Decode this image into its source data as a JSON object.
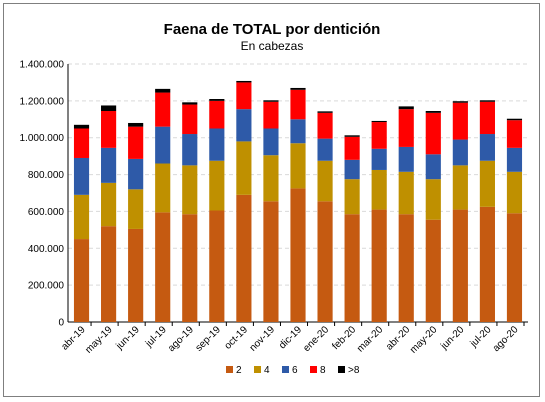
{
  "chart_data": {
    "type": "bar",
    "stacked": true,
    "title": "Faena de TOTAL por dentición",
    "subtitle": "En cabezas",
    "xlabel": "",
    "ylabel": "",
    "ylim": [
      0,
      1400000
    ],
    "yticks": [
      0,
      200000,
      400000,
      600000,
      800000,
      1000000,
      1200000,
      1400000
    ],
    "ytick_labels": [
      "0",
      "200.000",
      "400.000",
      "600.000",
      "800.000",
      "1.000.000",
      "1.200.000",
      "1.400.000"
    ],
    "grid": true,
    "legend_position": "bottom",
    "categories": [
      "abr-19",
      "may-19",
      "jun-19",
      "jul-19",
      "ago-19",
      "sep-19",
      "oct-19",
      "nov-19",
      "dic-19",
      "ene-20",
      "feb-20",
      "mar-20",
      "abr-20",
      "may-20",
      "jun-20",
      "jul-20",
      "ago-20"
    ],
    "series": [
      {
        "name": "2",
        "color": "#c55a11",
        "values": [
          450000,
          520000,
          505000,
          595000,
          585000,
          605000,
          690000,
          655000,
          725000,
          655000,
          585000,
          610000,
          585000,
          555000,
          610000,
          625000,
          590000
        ]
      },
      {
        "name": "4",
        "color": "#bf9000",
        "values": [
          240000,
          235000,
          215000,
          265000,
          265000,
          270000,
          290000,
          250000,
          245000,
          220000,
          190000,
          215000,
          230000,
          220000,
          240000,
          250000,
          225000
        ]
      },
      {
        "name": "6",
        "color": "#2e5aa8",
        "values": [
          200000,
          190000,
          165000,
          200000,
          170000,
          175000,
          175000,
          145000,
          130000,
          120000,
          105000,
          115000,
          135000,
          135000,
          140000,
          145000,
          130000
        ]
      },
      {
        "name": "8",
        "color": "#ff0000",
        "values": [
          160000,
          200000,
          175000,
          185000,
          160000,
          150000,
          145000,
          145000,
          160000,
          140000,
          125000,
          145000,
          205000,
          225000,
          200000,
          175000,
          150000
        ]
      },
      {
        "name": ">8",
        "color": "#000000",
        "values": [
          20000,
          30000,
          20000,
          20000,
          12000,
          10000,
          8000,
          8000,
          10000,
          8000,
          8000,
          6000,
          15000,
          10000,
          8000,
          8000,
          8000
        ]
      }
    ]
  }
}
